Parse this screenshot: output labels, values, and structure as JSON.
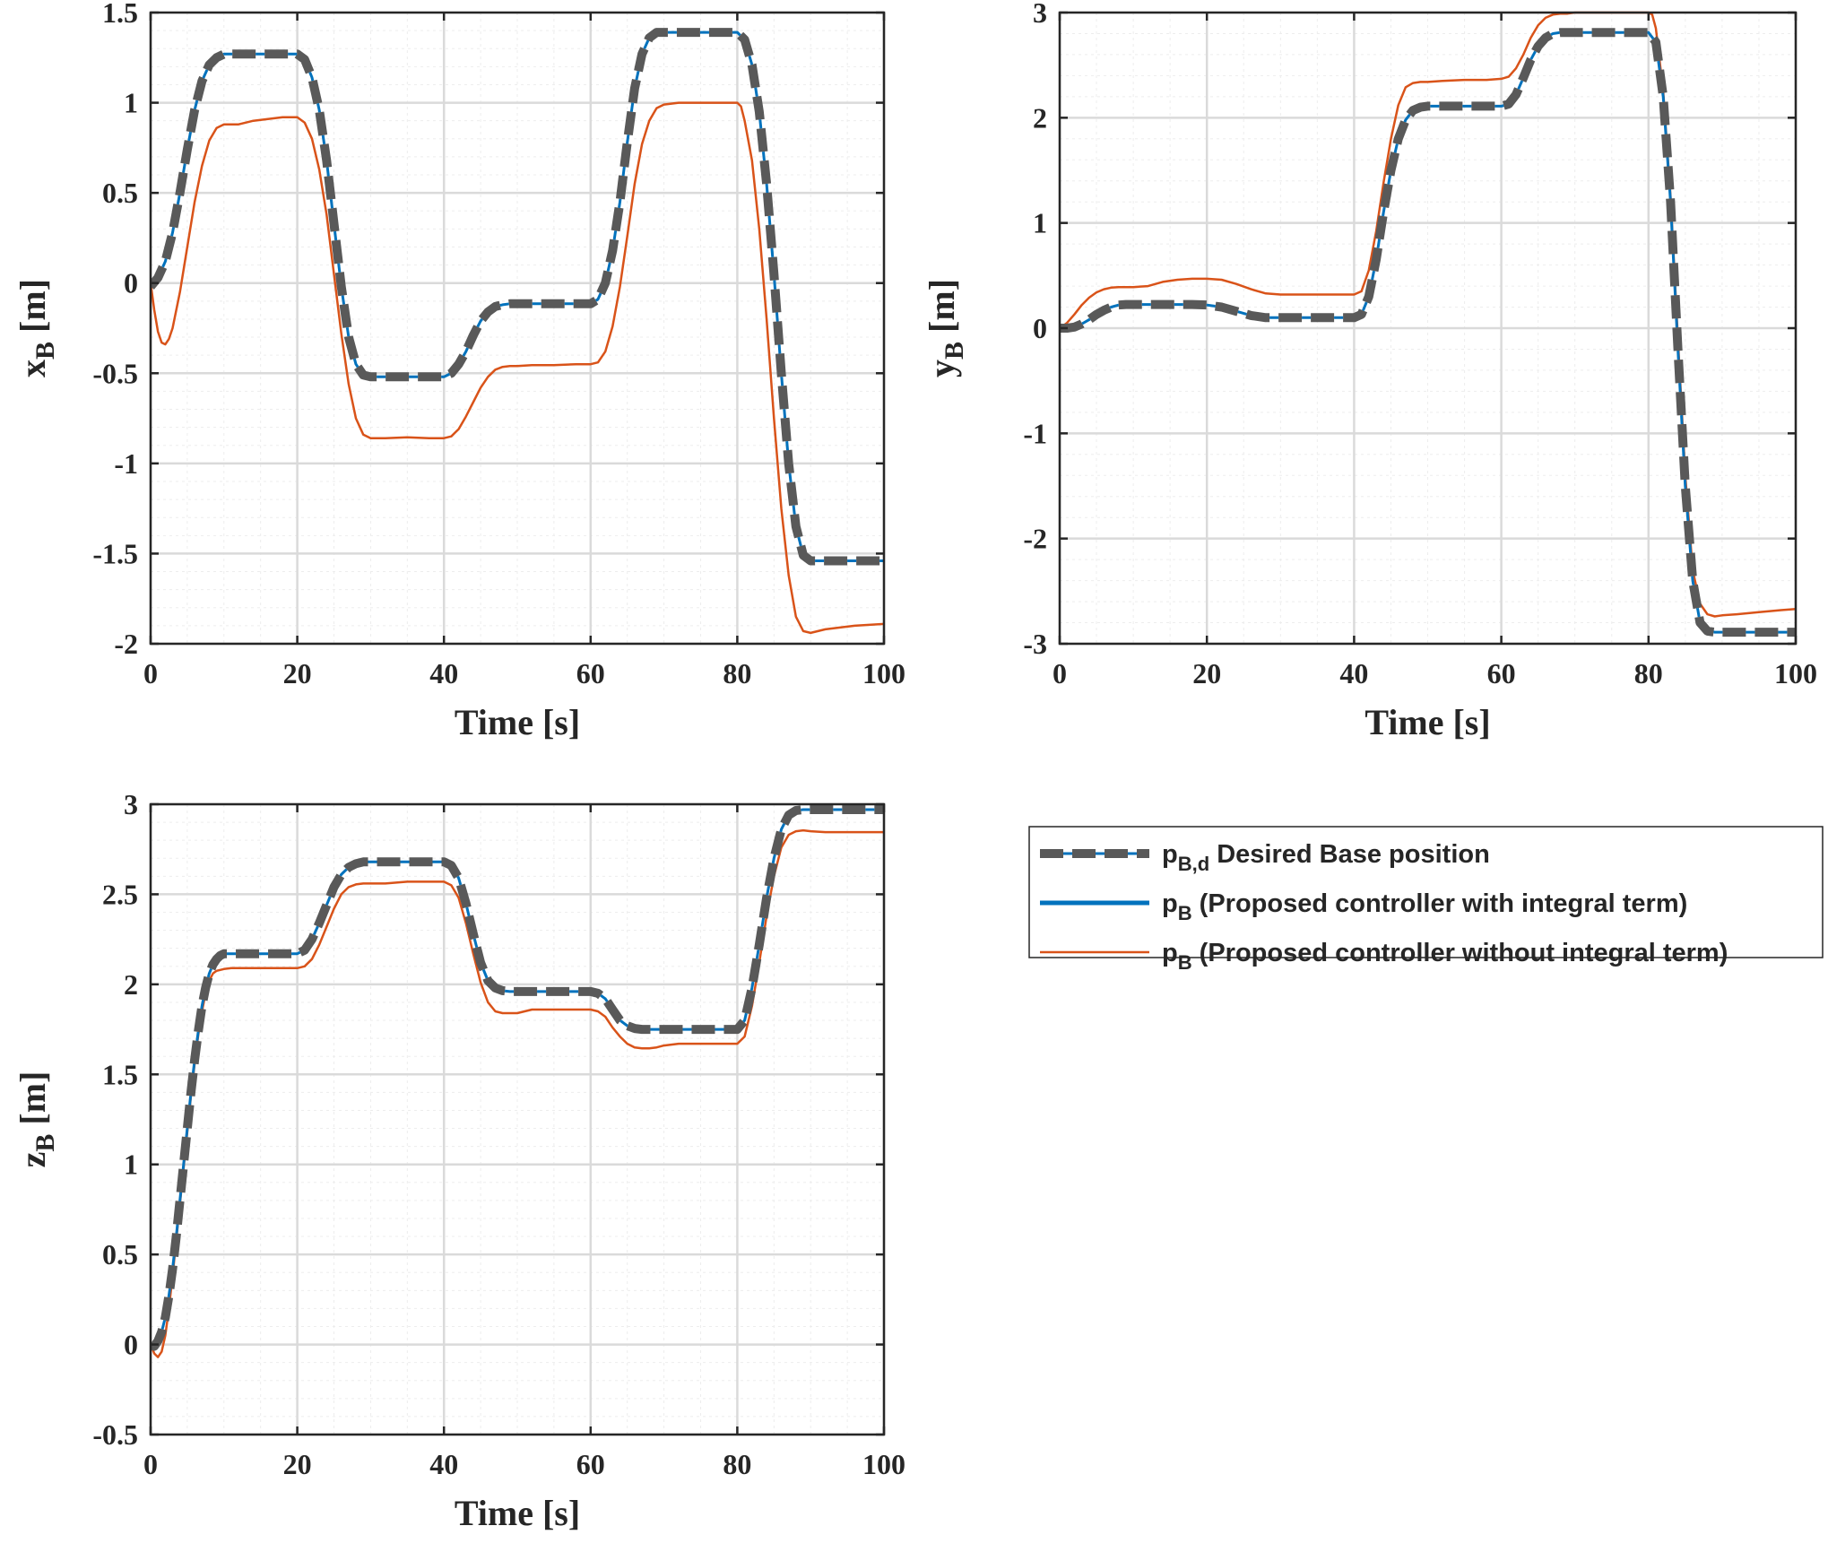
{
  "chart_data": [
    {
      "type": "line",
      "panel": "x",
      "xlabel": "Time [s]",
      "ylabel_main": "x",
      "ylabel_sub": "B",
      "ylabel_unit": " [m]",
      "xlim": [
        0,
        100
      ],
      "ylim": [
        -2,
        1.5
      ],
      "xticks": [
        0,
        20,
        40,
        60,
        80,
        100
      ],
      "yticks": [
        -2,
        -1.5,
        -1,
        -0.5,
        0,
        0.5,
        1,
        1.5
      ],
      "grid": true,
      "series": [
        {
          "name": "desired",
          "x": [
            0,
            1,
            2,
            3,
            4,
            5,
            6,
            7,
            8,
            9,
            10,
            11,
            12,
            14,
            16,
            18,
            20,
            21,
            22,
            23,
            24,
            25,
            26,
            27,
            28,
            29,
            30,
            32,
            35,
            38,
            40,
            41,
            42,
            43,
            44,
            45,
            46,
            47,
            48,
            49,
            50,
            52,
            55,
            58,
            60,
            61,
            62,
            63,
            64,
            65,
            66,
            67,
            68,
            69,
            70,
            72,
            75,
            78,
            80,
            81,
            82,
            83,
            84,
            85,
            86,
            87,
            88,
            89,
            90,
            92,
            95,
            98,
            100
          ],
          "y": [
            -0.02,
            0.03,
            0.12,
            0.28,
            0.5,
            0.74,
            0.96,
            1.12,
            1.21,
            1.25,
            1.27,
            1.27,
            1.27,
            1.27,
            1.27,
            1.27,
            1.27,
            1.24,
            1.14,
            0.96,
            0.68,
            0.33,
            -0.02,
            -0.3,
            -0.45,
            -0.51,
            -0.52,
            -0.52,
            -0.52,
            -0.52,
            -0.52,
            -0.5,
            -0.45,
            -0.38,
            -0.29,
            -0.21,
            -0.16,
            -0.13,
            -0.12,
            -0.115,
            -0.115,
            -0.115,
            -0.115,
            -0.115,
            -0.115,
            -0.09,
            0.0,
            0.18,
            0.45,
            0.78,
            1.08,
            1.27,
            1.36,
            1.39,
            1.39,
            1.39,
            1.39,
            1.39,
            1.39,
            1.35,
            1.21,
            0.95,
            0.55,
            0.05,
            -0.5,
            -1.0,
            -1.35,
            -1.51,
            -1.54,
            -1.54,
            -1.54,
            -1.54,
            -1.54
          ]
        },
        {
          "name": "with_integral",
          "same_as": "desired"
        },
        {
          "name": "without_integral",
          "x": [
            0,
            0.5,
            1,
            1.5,
            2,
            2.5,
            3,
            4,
            5,
            6,
            7,
            8,
            9,
            10,
            12,
            14,
            16,
            18,
            20,
            21,
            22,
            23,
            24,
            25,
            26,
            27,
            28,
            29,
            30,
            32,
            35,
            38,
            40,
            41,
            42,
            43,
            44,
            45,
            46,
            47,
            48,
            49,
            50,
            52,
            55,
            58,
            60,
            61,
            62,
            63,
            64,
            65,
            66,
            67,
            68,
            69,
            70,
            72,
            75,
            78,
            80,
            80.5,
            81,
            82,
            83,
            84,
            85,
            86,
            87,
            88,
            89,
            90,
            91,
            92,
            94,
            96,
            98,
            100
          ],
          "y": [
            0.0,
            -0.15,
            -0.27,
            -0.33,
            -0.34,
            -0.31,
            -0.25,
            -0.05,
            0.2,
            0.45,
            0.65,
            0.79,
            0.86,
            0.88,
            0.88,
            0.9,
            0.91,
            0.92,
            0.92,
            0.89,
            0.8,
            0.63,
            0.38,
            0.05,
            -0.28,
            -0.56,
            -0.75,
            -0.84,
            -0.86,
            -0.86,
            -0.855,
            -0.86,
            -0.86,
            -0.85,
            -0.81,
            -0.74,
            -0.66,
            -0.58,
            -0.52,
            -0.48,
            -0.465,
            -0.46,
            -0.46,
            -0.455,
            -0.455,
            -0.45,
            -0.45,
            -0.44,
            -0.38,
            -0.24,
            -0.02,
            0.26,
            0.55,
            0.77,
            0.9,
            0.97,
            0.99,
            1.0,
            1.0,
            1.0,
            1.0,
            0.98,
            0.9,
            0.68,
            0.3,
            -0.2,
            -0.75,
            -1.25,
            -1.62,
            -1.85,
            -1.93,
            -1.94,
            -1.93,
            -1.92,
            -1.91,
            -1.9,
            -1.895,
            -1.89
          ]
        }
      ]
    },
    {
      "type": "line",
      "panel": "y",
      "xlabel": "Time [s]",
      "ylabel_main": "y",
      "ylabel_sub": "B",
      "ylabel_unit": " [m]",
      "xlim": [
        0,
        100
      ],
      "ylim": [
        -3,
        3
      ],
      "xticks": [
        0,
        20,
        40,
        60,
        80,
        100
      ],
      "yticks": [
        -3,
        -2,
        -1,
        0,
        1,
        2,
        3
      ],
      "grid": true,
      "series": [
        {
          "name": "desired",
          "x": [
            0,
            1,
            2,
            3,
            4,
            5,
            6,
            7,
            8,
            9,
            10,
            12,
            15,
            18,
            20,
            22,
            24,
            26,
            28,
            30,
            32,
            35,
            38,
            40,
            41,
            42,
            43,
            44,
            45,
            46,
            47,
            48,
            49,
            50,
            52,
            55,
            58,
            60,
            61,
            62,
            63,
            64,
            65,
            66,
            67,
            68,
            69,
            70,
            72,
            75,
            78,
            80,
            81,
            82,
            83,
            84,
            85,
            86,
            87,
            88,
            89,
            90,
            92,
            95,
            98,
            100
          ],
          "y": [
            0,
            0,
            0.01,
            0.04,
            0.08,
            0.13,
            0.17,
            0.2,
            0.22,
            0.225,
            0.225,
            0.225,
            0.225,
            0.225,
            0.22,
            0.2,
            0.16,
            0.12,
            0.1,
            0.1,
            0.1,
            0.1,
            0.1,
            0.1,
            0.13,
            0.3,
            0.65,
            1.1,
            1.5,
            1.8,
            1.98,
            2.07,
            2.1,
            2.11,
            2.11,
            2.11,
            2.11,
            2.11,
            2.13,
            2.22,
            2.38,
            2.55,
            2.68,
            2.76,
            2.8,
            2.81,
            2.81,
            2.81,
            2.81,
            2.81,
            2.81,
            2.81,
            2.72,
            2.2,
            1.2,
            -0.2,
            -1.5,
            -2.4,
            -2.8,
            -2.88,
            -2.89,
            -2.89,
            -2.89,
            -2.89,
            -2.89,
            -2.89
          ]
        },
        {
          "name": "with_integral",
          "same_as": "desired"
        },
        {
          "name": "without_integral",
          "x": [
            0,
            1,
            2,
            3,
            4,
            5,
            6,
            7,
            8,
            9,
            10,
            12,
            14,
            16,
            18,
            20,
            22,
            24,
            26,
            28,
            30,
            32,
            35,
            38,
            40,
            41,
            42,
            43,
            44,
            45,
            46,
            47,
            48,
            49,
            50,
            52,
            55,
            58,
            60,
            61,
            62,
            63,
            64,
            65,
            66,
            67,
            68,
            69,
            70,
            72,
            75,
            78,
            80,
            80.5,
            81,
            82,
            83,
            84,
            85,
            86,
            87,
            88,
            89,
            90,
            92,
            95,
            98,
            100
          ],
          "y": [
            0,
            0.05,
            0.13,
            0.22,
            0.29,
            0.34,
            0.37,
            0.385,
            0.39,
            0.39,
            0.39,
            0.4,
            0.44,
            0.46,
            0.47,
            0.47,
            0.46,
            0.42,
            0.37,
            0.33,
            0.32,
            0.32,
            0.32,
            0.32,
            0.32,
            0.35,
            0.55,
            0.92,
            1.38,
            1.8,
            2.12,
            2.29,
            2.33,
            2.34,
            2.34,
            2.35,
            2.36,
            2.36,
            2.37,
            2.39,
            2.47,
            2.6,
            2.76,
            2.88,
            2.95,
            2.98,
            2.99,
            2.99,
            3.0,
            3.0,
            3.0,
            3.0,
            3.0,
            2.98,
            2.85,
            2.25,
            1.25,
            -0.1,
            -1.4,
            -2.3,
            -2.62,
            -2.72,
            -2.74,
            -2.73,
            -2.72,
            -2.7,
            -2.68,
            -2.67
          ]
        }
      ]
    },
    {
      "type": "line",
      "panel": "z",
      "xlabel": "Time [s]",
      "ylabel_main": "z",
      "ylabel_sub": "B",
      "ylabel_unit": " [m]",
      "xlim": [
        0,
        100
      ],
      "ylim": [
        -0.5,
        3
      ],
      "xticks": [
        0,
        20,
        40,
        60,
        80,
        100
      ],
      "yticks": [
        -0.5,
        0,
        0.5,
        1,
        1.5,
        2,
        2.5,
        3
      ],
      "grid": true,
      "series": [
        {
          "name": "desired",
          "x": [
            0,
            0.5,
            1,
            1.5,
            2,
            2.5,
            3,
            3.5,
            4,
            4.5,
            5,
            5.5,
            6,
            6.5,
            7,
            7.5,
            8,
            8.5,
            9,
            9.5,
            10,
            11,
            12,
            14,
            16,
            18,
            20,
            21,
            22,
            23,
            24,
            25,
            26,
            27,
            28,
            29,
            30,
            32,
            35,
            38,
            40,
            41,
            42,
            43,
            44,
            45,
            46,
            47,
            48,
            49,
            50,
            52,
            55,
            58,
            60,
            61,
            62,
            63,
            64,
            65,
            66,
            67,
            68,
            69,
            70,
            72,
            75,
            78,
            80,
            81,
            82,
            83,
            84,
            85,
            86,
            87,
            88,
            89,
            90,
            92,
            95,
            98,
            100
          ],
          "y": [
            0,
            -0.01,
            0.02,
            0.07,
            0.15,
            0.27,
            0.42,
            0.6,
            0.8,
            1.0,
            1.2,
            1.4,
            1.58,
            1.74,
            1.88,
            1.98,
            2.06,
            2.11,
            2.14,
            2.16,
            2.17,
            2.17,
            2.17,
            2.17,
            2.17,
            2.17,
            2.17,
            2.19,
            2.25,
            2.34,
            2.44,
            2.54,
            2.61,
            2.65,
            2.67,
            2.68,
            2.68,
            2.68,
            2.68,
            2.68,
            2.68,
            2.66,
            2.59,
            2.45,
            2.28,
            2.12,
            2.02,
            1.98,
            1.965,
            1.96,
            1.96,
            1.96,
            1.96,
            1.96,
            1.96,
            1.95,
            1.92,
            1.86,
            1.8,
            1.77,
            1.755,
            1.75,
            1.75,
            1.75,
            1.75,
            1.75,
            1.75,
            1.75,
            1.75,
            1.8,
            1.98,
            2.22,
            2.48,
            2.7,
            2.86,
            2.94,
            2.965,
            2.97,
            2.97,
            2.97,
            2.97,
            2.97,
            2.97
          ]
        },
        {
          "name": "with_integral",
          "same_as": "desired"
        },
        {
          "name": "without_integral",
          "x": [
            0,
            0.5,
            1,
            1.5,
            2,
            2.5,
            3,
            3.5,
            4,
            4.5,
            5,
            5.5,
            6,
            6.5,
            7,
            7.5,
            8,
            8.5,
            9,
            9.5,
            10,
            11,
            12,
            14,
            16,
            18,
            20,
            21,
            22,
            23,
            24,
            25,
            26,
            27,
            28,
            29,
            30,
            32,
            35,
            38,
            40,
            41,
            42,
            43,
            44,
            45,
            46,
            47,
            48,
            49,
            50,
            52,
            55,
            58,
            60,
            61,
            62,
            63,
            64,
            65,
            66,
            67,
            68,
            69,
            70,
            72,
            75,
            78,
            80,
            81,
            82,
            83,
            84,
            85,
            86,
            87,
            88,
            89,
            90,
            92,
            95,
            98,
            100
          ],
          "y": [
            0,
            -0.05,
            -0.07,
            -0.04,
            0.05,
            0.2,
            0.38,
            0.58,
            0.78,
            0.98,
            1.18,
            1.38,
            1.56,
            1.72,
            1.85,
            1.95,
            2.02,
            2.06,
            2.075,
            2.08,
            2.085,
            2.09,
            2.09,
            2.09,
            2.09,
            2.09,
            2.09,
            2.1,
            2.14,
            2.22,
            2.32,
            2.42,
            2.5,
            2.54,
            2.555,
            2.56,
            2.56,
            2.56,
            2.57,
            2.57,
            2.57,
            2.55,
            2.48,
            2.34,
            2.17,
            2.01,
            1.9,
            1.85,
            1.84,
            1.84,
            1.84,
            1.86,
            1.86,
            1.86,
            1.86,
            1.85,
            1.82,
            1.76,
            1.71,
            1.67,
            1.65,
            1.645,
            1.645,
            1.65,
            1.66,
            1.67,
            1.67,
            1.67,
            1.67,
            1.71,
            1.88,
            2.12,
            2.38,
            2.6,
            2.76,
            2.83,
            2.85,
            2.855,
            2.85,
            2.845,
            2.845,
            2.845,
            2.845
          ]
        }
      ]
    }
  ],
  "legend": {
    "items": [
      {
        "key": "desired",
        "main": "p",
        "sub": "B,d",
        "text": " Desired Base position",
        "color": "#595959",
        "style": "dashed"
      },
      {
        "key": "with_integral",
        "main": "p",
        "sub": "B",
        "text": " (Proposed controller with integral term)",
        "color": "#0072BD",
        "style": "solid"
      },
      {
        "key": "without_integral",
        "main": "p",
        "sub": "B",
        "text": " (Proposed controller without integral term)",
        "color": "#D95319",
        "style": "solid"
      }
    ]
  },
  "colors": {
    "desired": "#595959",
    "with_integral": "#0072BD",
    "without_integral": "#D95319",
    "grid_major": "#dadada",
    "grid_minor": "#ededed",
    "axis": "#262626"
  }
}
